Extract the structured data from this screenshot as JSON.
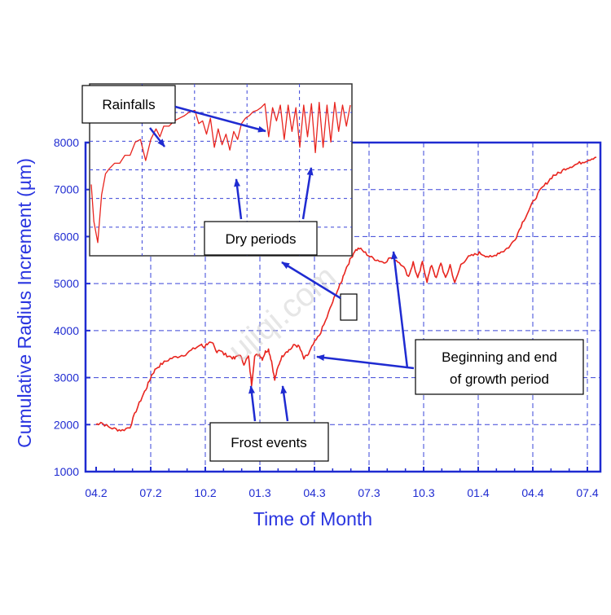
{
  "chart_data": {
    "type": "line",
    "title": "",
    "xlabel": "Time of Month",
    "ylabel": "Cumulative Radius Increment (µm)",
    "xlim": [
      0,
      32.5
    ],
    "ylim": [
      1000,
      8000
    ],
    "x_tick_labels": [
      "04.2",
      "07.2",
      "10.2",
      "01.3",
      "04.3",
      "07.3",
      "10.3",
      "01.4",
      "04.4",
      "07.4"
    ],
    "y_ticks": [
      1000,
      2000,
      3000,
      4000,
      5000,
      6000,
      7000,
      8000
    ],
    "grid": true,
    "series": [
      {
        "color": "#e8251f",
        "x": [
          0,
          0.3,
          0.8,
          1.3,
          1.7,
          2.2,
          2.6,
          3.0,
          3.3,
          3.6,
          3.9,
          4.3,
          4.8,
          5.3,
          5.8,
          6.3,
          6.8,
          7.0,
          7.3,
          7.6,
          7.8,
          8.0,
          8.3,
          8.7,
          9.0,
          9.3,
          9.6,
          9.9,
          10.1,
          10.3,
          10.6,
          10.8,
          11.0,
          11.2,
          11.4,
          11.6,
          11.8,
          12.0,
          12.3,
          12.6,
          12.9,
          13.2,
          13.5,
          13.8,
          14.1,
          14.5,
          14.9,
          15.3,
          15.6,
          15.9,
          16.2,
          16.5,
          16.8,
          17.1,
          17.5,
          17.9,
          18.3,
          18.7,
          19.1,
          19.5,
          19.9,
          20.3,
          20.6,
          20.9,
          21.2,
          21.5,
          21.8,
          22.1,
          22.4,
          22.7,
          23.0,
          23.3,
          23.7,
          24.1,
          24.5,
          24.9,
          25.3,
          25.7,
          26.1,
          26.5,
          26.9,
          27.3,
          27.7,
          28.1,
          28.5,
          28.9,
          29.3,
          29.7,
          30.1,
          30.5,
          30.9,
          31.3,
          31.7,
          32.1,
          32.5
        ],
        "y": [
          2000,
          2050,
          1950,
          1900,
          1880,
          1950,
          2300,
          2600,
          2800,
          3050,
          3200,
          3300,
          3400,
          3450,
          3500,
          3600,
          3700,
          3650,
          3750,
          3700,
          3550,
          3600,
          3500,
          3450,
          3400,
          3500,
          3300,
          3450,
          2850,
          3450,
          3500,
          3400,
          3550,
          3600,
          3350,
          2950,
          3200,
          3400,
          3550,
          3600,
          3700,
          3650,
          3400,
          3500,
          3700,
          3900,
          4200,
          4550,
          4800,
          5000,
          5300,
          5500,
          5700,
          5750,
          5650,
          5550,
          5500,
          5450,
          5550,
          5500,
          5400,
          5150,
          5450,
          5100,
          5450,
          5050,
          5400,
          5100,
          5450,
          5100,
          5400,
          5000,
          5400,
          5550,
          5600,
          5650,
          5600,
          5550,
          5650,
          5700,
          5800,
          6000,
          6300,
          6550,
          6800,
          7000,
          7150,
          7300,
          7350,
          7450,
          7500,
          7550,
          7600,
          7650,
          7700
        ]
      }
    ],
    "inset": {
      "series": [
        {
          "color": "#e8251f",
          "x": [
            0,
            0.1,
            0.25,
            0.4,
            0.55,
            0.7,
            0.9,
            1.1,
            1.3,
            1.5,
            1.7,
            1.9,
            2.1,
            2.3,
            2.5,
            2.65,
            2.8,
            3.0,
            3.2,
            3.4,
            3.6,
            3.8,
            4.0,
            4.15,
            4.3,
            4.45,
            4.6,
            4.75,
            4.9,
            5.05,
            5.2,
            5.35,
            5.5,
            5.65,
            5.8,
            5.95,
            6.1,
            6.25,
            6.4,
            6.55,
            6.7,
            6.85,
            7.0,
            7.15,
            7.3,
            7.45,
            7.6,
            7.75,
            7.9,
            8.05,
            8.2,
            8.35,
            8.5,
            8.65,
            8.8,
            8.95,
            9.1,
            9.25,
            9.4,
            9.55,
            9.7,
            9.85,
            10.0
          ],
          "y": [
            5.2,
            3.8,
            3.0,
            4.8,
            5.6,
            5.8,
            6.0,
            6.0,
            6.3,
            6.3,
            6.8,
            6.9,
            6.1,
            6.9,
            7.3,
            7.0,
            7.4,
            7.4,
            7.6,
            7.7,
            7.8,
            7.95,
            8.0,
            7.5,
            7.6,
            7.1,
            7.7,
            6.6,
            7.3,
            6.7,
            7.1,
            6.5,
            7.2,
            6.9,
            7.5,
            7.7,
            7.8,
            7.95,
            8.0,
            8.1,
            8.25,
            7.0,
            8.1,
            7.6,
            8.2,
            6.9,
            8.2,
            7.2,
            8.1,
            6.6,
            8.2,
            7.0,
            8.25,
            6.4,
            8.3,
            6.6,
            8.2,
            6.8,
            8.3,
            7.2,
            8.2,
            7.4,
            8.2
          ]
        }
      ]
    },
    "annotations": [
      {
        "key": "rainfalls",
        "text": "Rainfalls"
      },
      {
        "key": "dry",
        "text": "Dry periods"
      },
      {
        "key": "growth_1",
        "text": "Beginning and end"
      },
      {
        "key": "growth_2",
        "text": "of growth period"
      },
      {
        "key": "frost",
        "text": "Frost events"
      }
    ],
    "watermark": "ujiqi.com"
  }
}
